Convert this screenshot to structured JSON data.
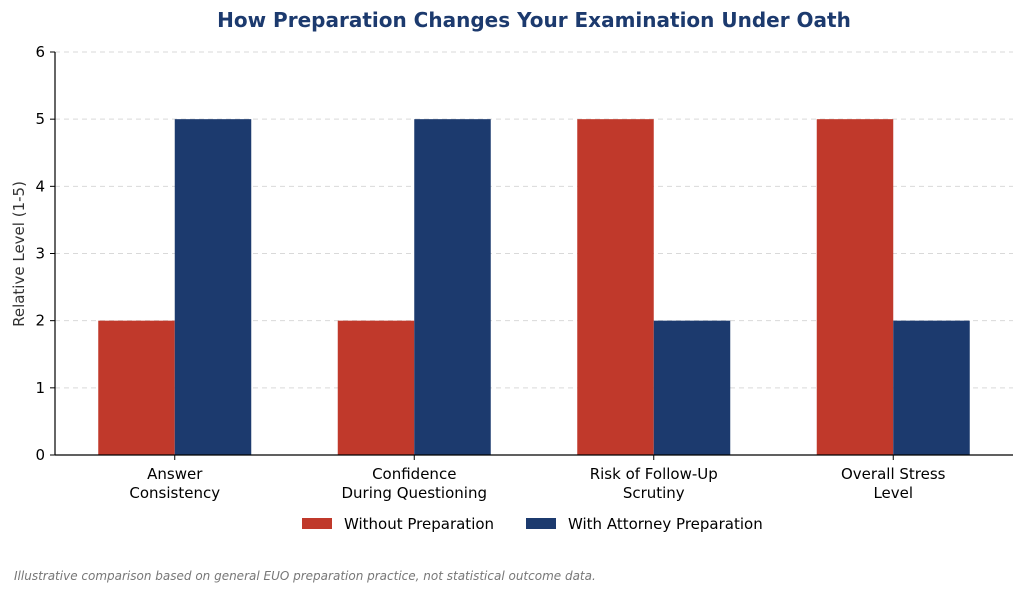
{
  "chart_data": {
    "type": "bar",
    "title": "How Preparation Changes Your Examination Under Oath",
    "ylabel": "Relative Level (1-5)",
    "xlabel": "",
    "ylim": [
      0,
      6
    ],
    "yticks": [
      "0",
      "1",
      "2",
      "3",
      "4",
      "5",
      "6"
    ],
    "grid": "horizontal dashed",
    "legend_position": "bottom-center",
    "categories": [
      [
        "Answer",
        "Consistency"
      ],
      [
        "Confidence",
        "During Questioning"
      ],
      [
        "Risk of Follow-Up",
        "Scrutiny"
      ],
      [
        "Overall Stress",
        "Level"
      ]
    ],
    "series": [
      {
        "name": "Without Preparation",
        "color": "#c0392b",
        "values": [
          2,
          2,
          5,
          5
        ]
      },
      {
        "name": "With Attorney Preparation",
        "color": "#1c3a6e",
        "values": [
          5,
          5,
          2,
          2
        ]
      }
    ],
    "title_color": "#1c3a6e"
  },
  "footnote": "Illustrative comparison based on general EUO preparation practice, not statistical outcome data."
}
